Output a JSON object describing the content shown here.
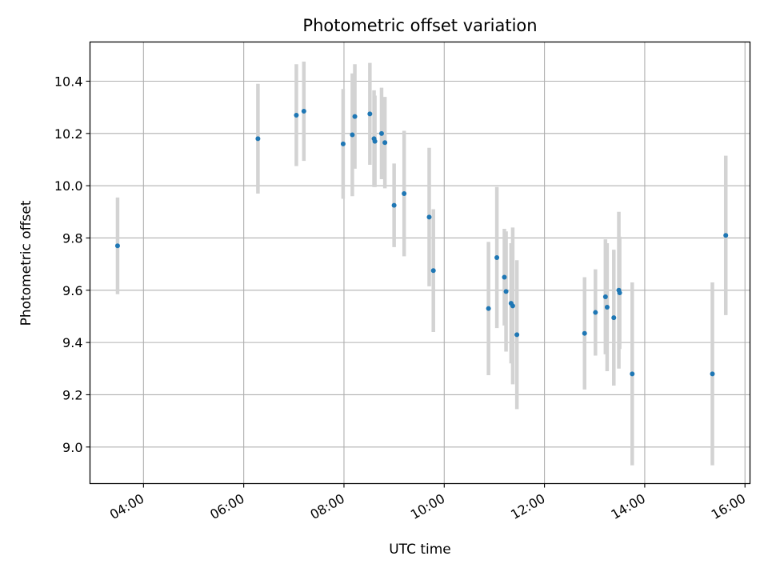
{
  "chart_data": {
    "type": "scatter",
    "title": "Photometric offset variation",
    "xlabel": "UTC time",
    "ylabel": "Photometric offset",
    "x_ticks": [
      "04:00",
      "06:00",
      "08:00",
      "10:00",
      "12:00",
      "14:00",
      "16:00"
    ],
    "y_ticks": [
      "9.0",
      "9.2",
      "9.4",
      "9.6",
      "9.8",
      "10.0",
      "10.2",
      "10.4"
    ],
    "xlim": [
      "02:56",
      "16:06"
    ],
    "ylim": [
      8.86,
      10.55
    ],
    "grid": true,
    "series": [
      {
        "marker_color": "#1f77b4",
        "errorbar_color": "#d3d3d3",
        "points": [
          {
            "x": "03:29",
            "y": 9.77,
            "err": 0.185
          },
          {
            "x": "06:17",
            "y": 10.18,
            "err": 0.21
          },
          {
            "x": "07:03",
            "y": 10.27,
            "err": 0.195
          },
          {
            "x": "07:12",
            "y": 10.285,
            "err": 0.19
          },
          {
            "x": "07:59",
            "y": 10.16,
            "err": 0.21
          },
          {
            "x": "08:10",
            "y": 10.195,
            "err": 0.235
          },
          {
            "x": "08:13",
            "y": 10.265,
            "err": 0.2
          },
          {
            "x": "08:31",
            "y": 10.275,
            "err": 0.195
          },
          {
            "x": "08:36",
            "y": 10.18,
            "err": 0.185
          },
          {
            "x": "08:37",
            "y": 10.17,
            "err": 0.175
          },
          {
            "x": "08:45",
            "y": 10.2,
            "err": 0.175
          },
          {
            "x": "08:49",
            "y": 10.165,
            "err": 0.175
          },
          {
            "x": "09:00",
            "y": 9.925,
            "err": 0.16
          },
          {
            "x": "09:12",
            "y": 9.97,
            "err": 0.24
          },
          {
            "x": "09:42",
            "y": 9.88,
            "err": 0.265
          },
          {
            "x": "09:47",
            "y": 9.675,
            "err": 0.235
          },
          {
            "x": "10:53",
            "y": 9.53,
            "err": 0.255
          },
          {
            "x": "11:03",
            "y": 9.725,
            "err": 0.27
          },
          {
            "x": "11:12",
            "y": 9.65,
            "err": 0.185
          },
          {
            "x": "11:14",
            "y": 9.595,
            "err": 0.23
          },
          {
            "x": "11:20",
            "y": 9.55,
            "err": 0.23
          },
          {
            "x": "11:22",
            "y": 9.54,
            "err": 0.3
          },
          {
            "x": "11:27",
            "y": 9.43,
            "err": 0.285
          },
          {
            "x": "12:48",
            "y": 9.435,
            "err": 0.215
          },
          {
            "x": "13:01",
            "y": 9.515,
            "err": 0.165
          },
          {
            "x": "13:13",
            "y": 9.575,
            "err": 0.22
          },
          {
            "x": "13:15",
            "y": 9.535,
            "err": 0.245
          },
          {
            "x": "13:23",
            "y": 9.495,
            "err": 0.26
          },
          {
            "x": "13:29",
            "y": 9.6,
            "err": 0.3
          },
          {
            "x": "13:30",
            "y": 9.59,
            "err": 0.215
          },
          {
            "x": "13:45",
            "y": 9.28,
            "err": 0.35
          },
          {
            "x": "15:21",
            "y": 9.28,
            "err": 0.35
          },
          {
            "x": "15:37",
            "y": 9.81,
            "err": 0.305
          }
        ]
      }
    ]
  }
}
